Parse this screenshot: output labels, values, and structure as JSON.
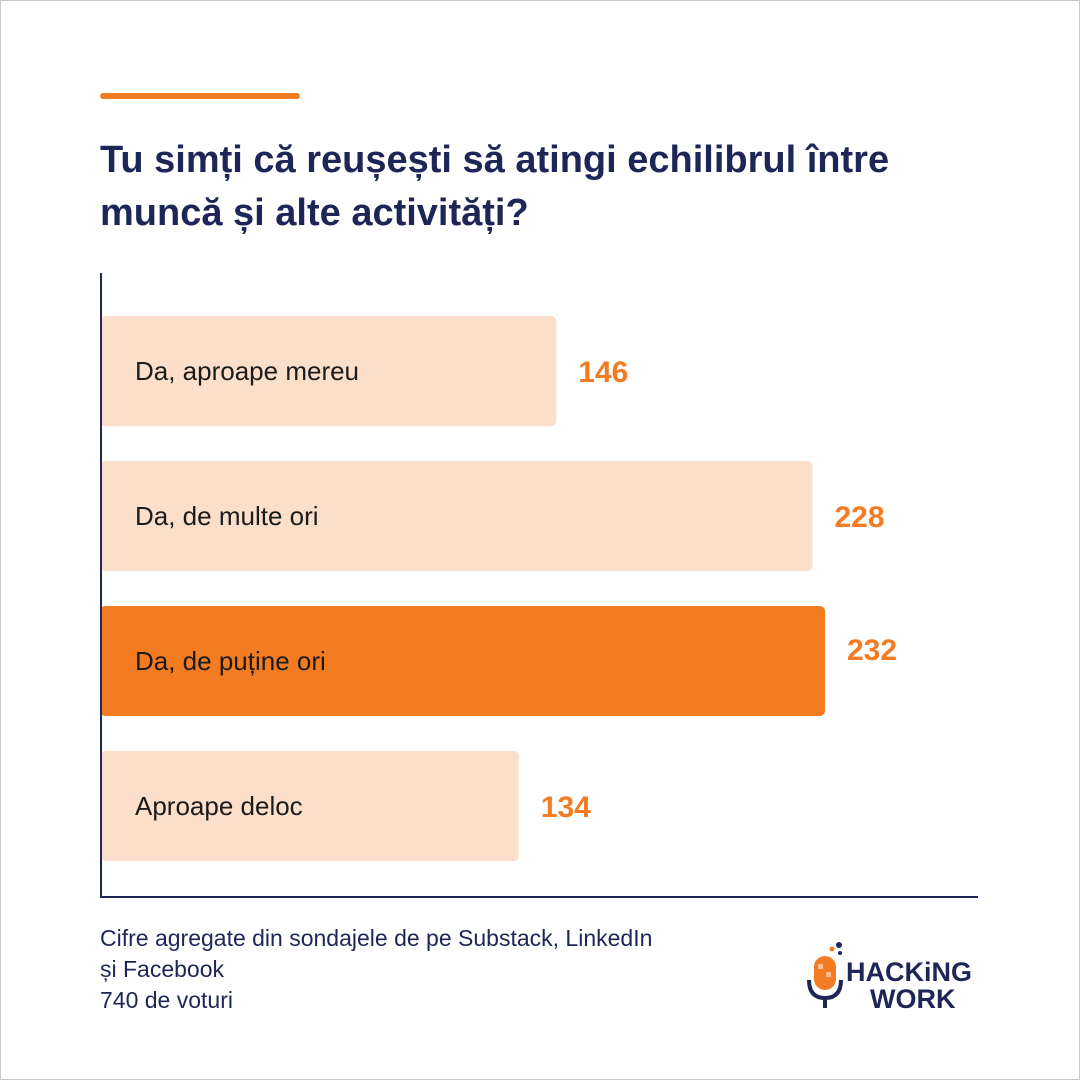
{
  "title": "Tu simți că reușești să atingi echilibrul între muncă și alte activități?",
  "chart_data": {
    "type": "bar",
    "orientation": "horizontal",
    "categories": [
      "Da, aproape mereu",
      "Da, de multe ori",
      "Da, de puține ori",
      "Aproape deloc"
    ],
    "values": [
      146,
      228,
      232,
      134
    ],
    "highlight_index": 2,
    "xlim": [
      0,
      320
    ],
    "grid": false,
    "colors": {
      "bar": "#fcdfcb",
      "highlight": "#f37c23",
      "value_label": "#f37c23",
      "category_label": "#1b1b1b",
      "axis": "#1d2657"
    }
  },
  "footer": {
    "source_line1": "Cifre agregate din sondajele de pe Substack, LinkedIn",
    "source_line2": "și Facebook",
    "votes": "740 de voturi"
  },
  "logo": {
    "line1": "HACKiNG",
    "line2": "WORK",
    "icon": "microphone-icon"
  }
}
